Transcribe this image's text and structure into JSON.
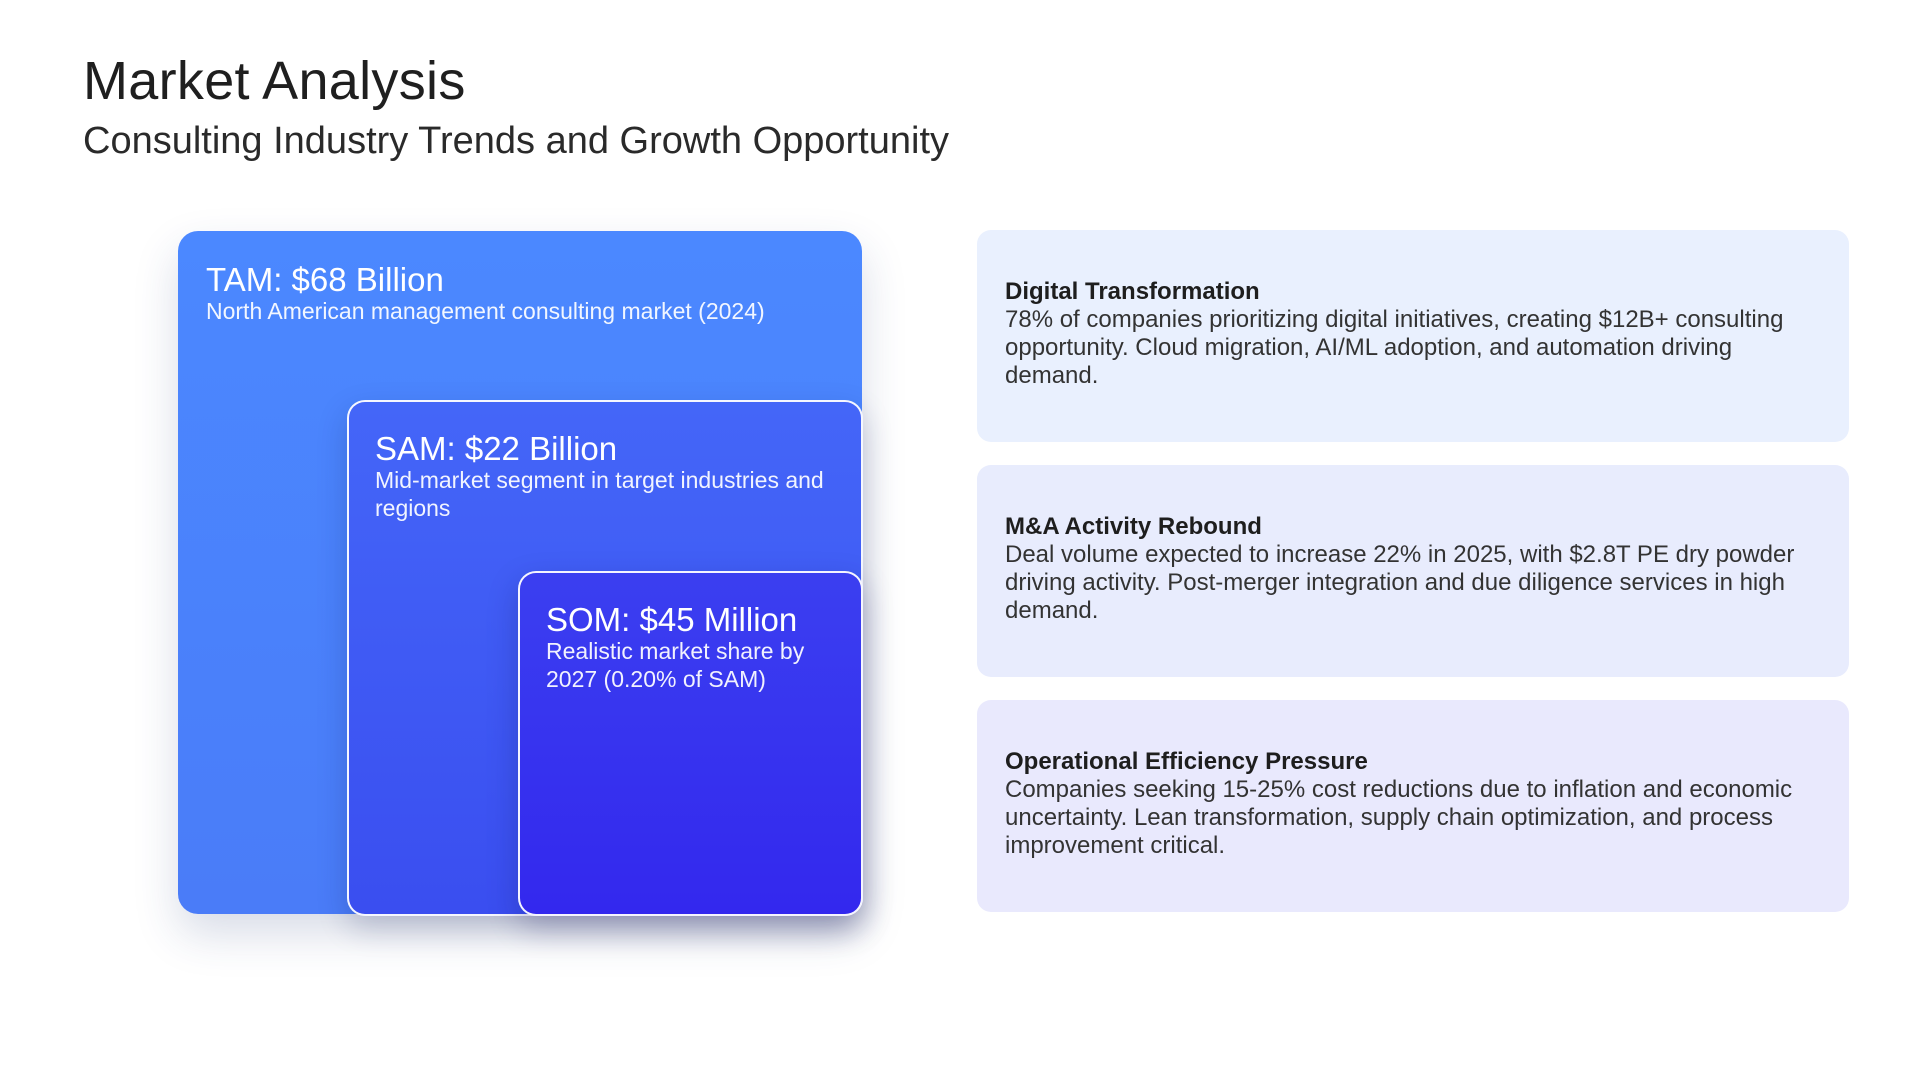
{
  "header": {
    "title": "Market Analysis",
    "subtitle": "Consulting Industry Trends and Growth Opportunity"
  },
  "market": {
    "tam": {
      "heading": "TAM: $68 Billion",
      "description": "North American management consulting market (2024)"
    },
    "sam": {
      "heading": "SAM: $22 Billion",
      "description": "Mid-market segment in target industries and regions"
    },
    "som": {
      "heading": "SOM: $45 Million",
      "description": "Realistic market share by 2027 (0.20% of SAM)"
    }
  },
  "trends": [
    {
      "title": "Digital Transformation",
      "body": "78% of companies prioritizing digital initiatives, creating $12B+ consulting opportunity. Cloud migration, AI/ML adoption, and automation driving demand."
    },
    {
      "title": "M&A Activity Rebound",
      "body": "Deal volume expected to increase 22% in 2025, with $2.8T PE dry powder driving activity. Post-merger integration and due diligence services in high demand."
    },
    {
      "title": "Operational Efficiency Pressure",
      "body": "Companies seeking 15-25% cost reductions due to inflation and economic uncertainty. Lean transformation, supply chain optimization, and process improvement critical."
    }
  ],
  "colors": {
    "tam": "#4b88ff",
    "sam": "#3f5bf5",
    "som": "#3328ee",
    "card_background": "#e9edfd"
  }
}
